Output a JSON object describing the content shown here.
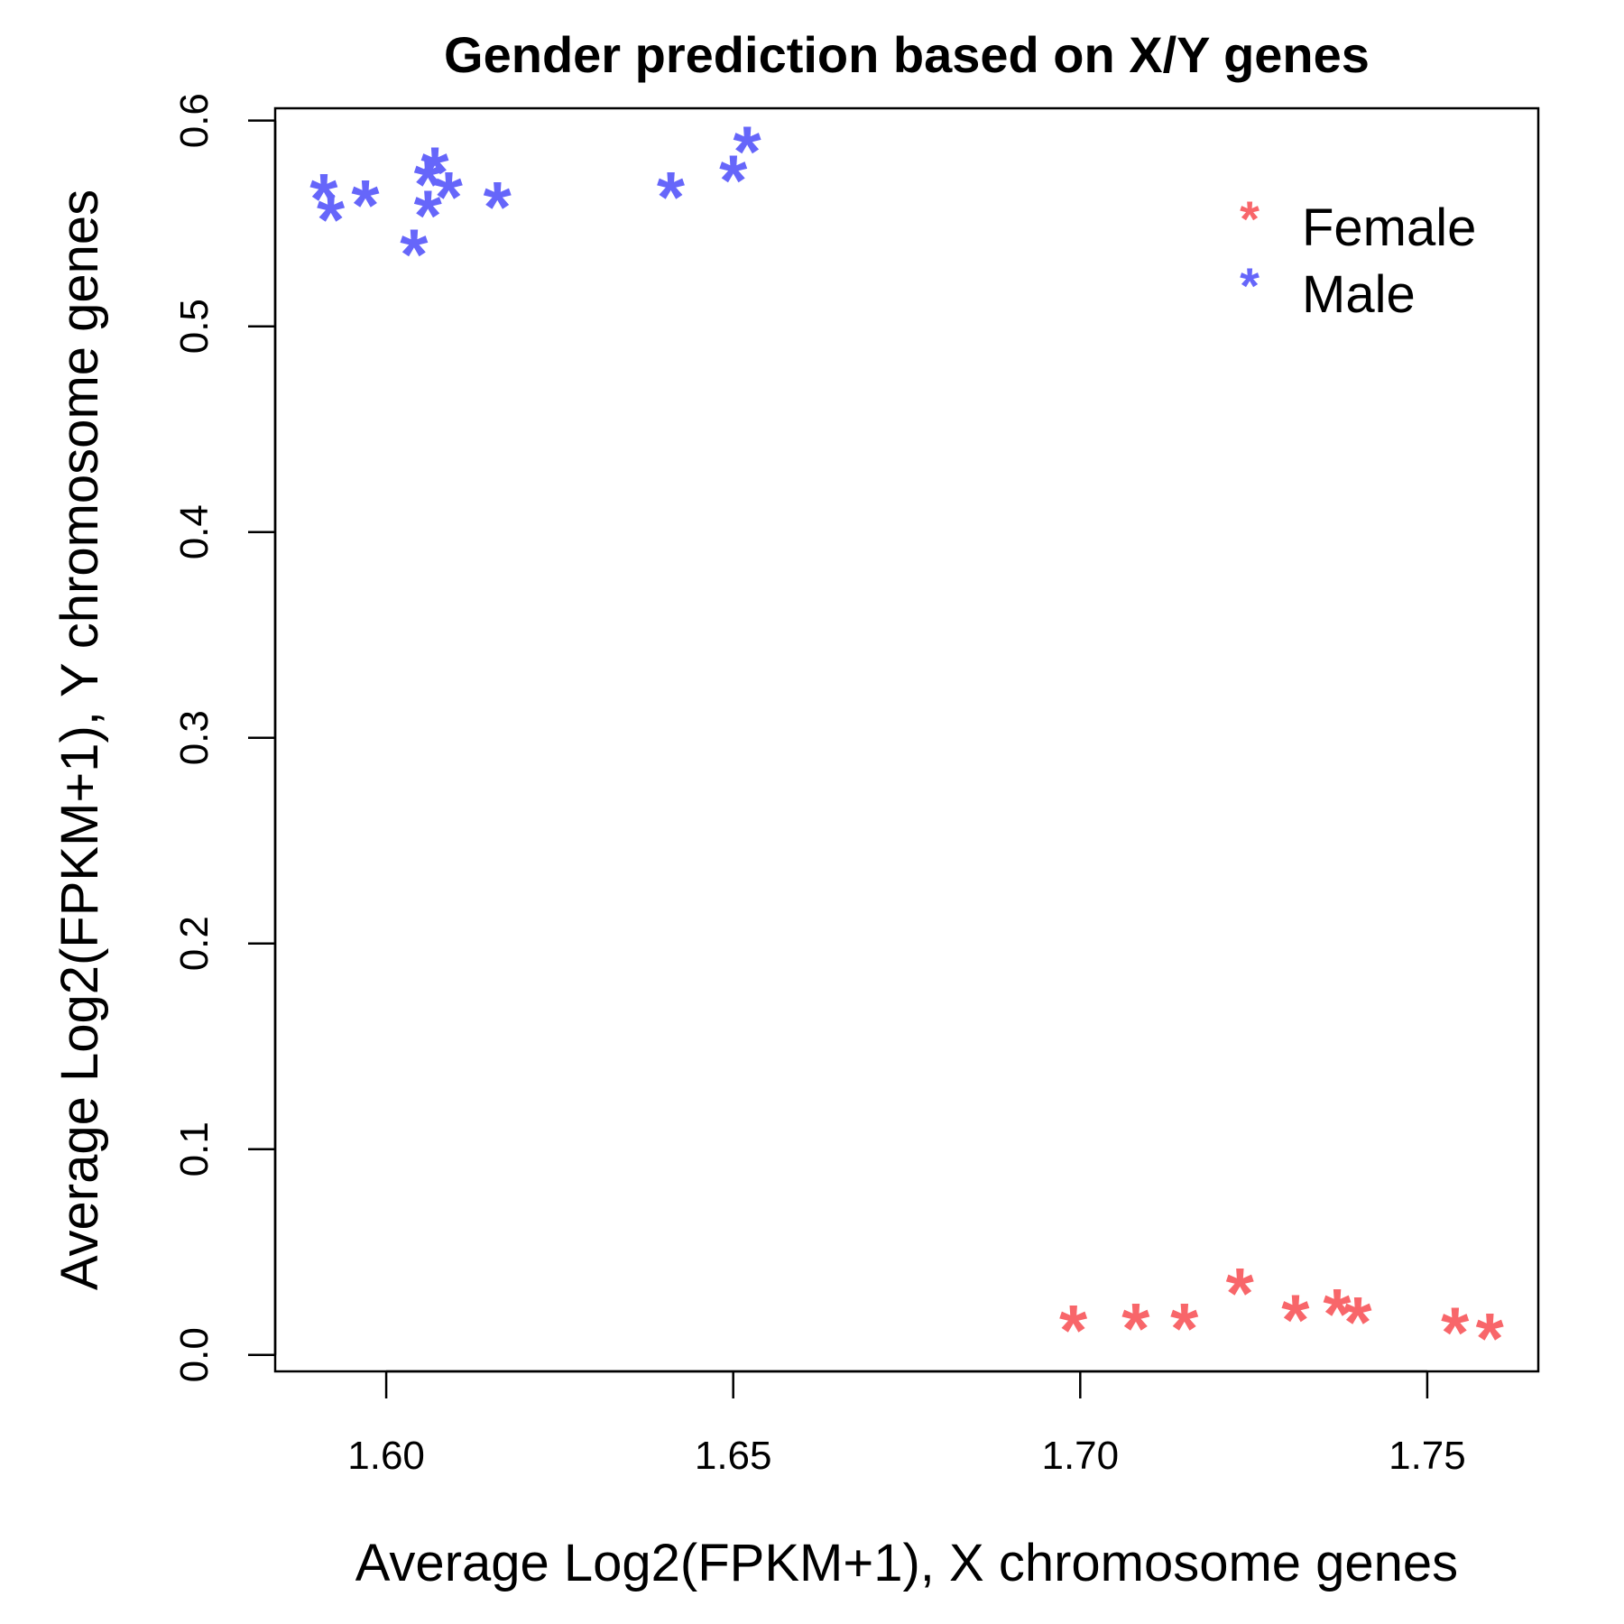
{
  "chart_data": {
    "type": "scatter",
    "title": "Gender prediction based on X/Y genes",
    "xlabel": "Average Log2(FPKM+1), X chromosome genes",
    "ylabel": "Average Log2(FPKM+1), Y chromosome genes",
    "xlim": [
      1.584,
      1.766
    ],
    "ylim": [
      -0.008,
      0.606
    ],
    "x_ticks": [
      1.6,
      1.65,
      1.7,
      1.75
    ],
    "x_tick_labels": [
      "1.60",
      "1.65",
      "1.70",
      "1.75"
    ],
    "y_ticks": [
      0.0,
      0.1,
      0.2,
      0.3,
      0.4,
      0.5,
      0.6
    ],
    "y_tick_labels": [
      "0.0",
      "0.1",
      "0.2",
      "0.3",
      "0.4",
      "0.5",
      "0.6"
    ],
    "grid": false,
    "legend_position": "top-right",
    "marker": "*",
    "series": [
      {
        "name": "Female",
        "color": "#F8666A",
        "points": [
          {
            "x": 1.699,
            "y": 0.013
          },
          {
            "x": 1.708,
            "y": 0.014
          },
          {
            "x": 1.715,
            "y": 0.014
          },
          {
            "x": 1.723,
            "y": 0.031
          },
          {
            "x": 1.731,
            "y": 0.018
          },
          {
            "x": 1.737,
            "y": 0.021
          },
          {
            "x": 1.74,
            "y": 0.017
          },
          {
            "x": 1.754,
            "y": 0.012
          },
          {
            "x": 1.759,
            "y": 0.009
          }
        ]
      },
      {
        "name": "Male",
        "color": "#6666FA",
        "points": [
          {
            "x": 1.591,
            "y": 0.563
          },
          {
            "x": 1.592,
            "y": 0.553
          },
          {
            "x": 1.597,
            "y": 0.56
          },
          {
            "x": 1.604,
            "y": 0.536
          },
          {
            "x": 1.606,
            "y": 0.57
          },
          {
            "x": 1.606,
            "y": 0.555
          },
          {
            "x": 1.607,
            "y": 0.576
          },
          {
            "x": 1.609,
            "y": 0.564
          },
          {
            "x": 1.616,
            "y": 0.559
          },
          {
            "x": 1.641,
            "y": 0.564
          },
          {
            "x": 1.65,
            "y": 0.572
          },
          {
            "x": 1.652,
            "y": 0.586
          }
        ]
      }
    ]
  }
}
